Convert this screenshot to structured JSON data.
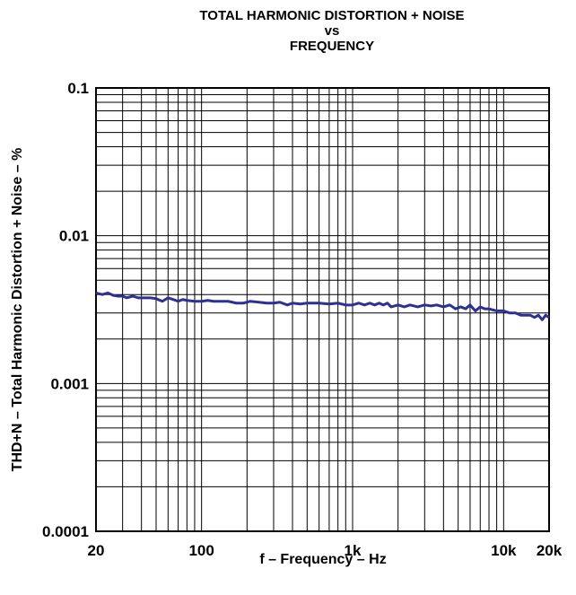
{
  "chart_data": {
    "type": "line",
    "title": [
      "TOTAL HARMONIC DISTORTION + NOISE",
      "vs",
      "FREQUENCY"
    ],
    "xlabel": "f – Frequency – Hz",
    "ylabel": "THD+N – Total Harmonic Distortion + Noise – %",
    "x_scale": "log",
    "y_scale": "log",
    "xlim": [
      20,
      20000
    ],
    "ylim": [
      0.0001,
      0.1
    ],
    "grid": true,
    "x_ticks": [
      {
        "value": 20,
        "label": "20"
      },
      {
        "value": 100,
        "label": "100"
      },
      {
        "value": 1000,
        "label": "1k"
      },
      {
        "value": 10000,
        "label": "10k"
      },
      {
        "value": 20000,
        "label": "20k"
      }
    ],
    "y_ticks": [
      {
        "value": 0.1,
        "label": "0.1"
      },
      {
        "value": 0.01,
        "label": "0.01"
      },
      {
        "value": 0.001,
        "label": "0.001"
      },
      {
        "value": 0.0001,
        "label": "0.0001"
      }
    ],
    "line_color": "#2e3192",
    "series": [
      {
        "x": [
          20,
          22,
          24,
          26,
          28,
          30,
          32,
          35,
          38,
          42,
          46,
          50,
          55,
          60,
          65,
          70,
          75,
          80,
          90,
          100,
          110,
          120,
          135,
          150,
          170,
          190,
          210,
          240,
          270,
          300,
          330,
          370,
          400,
          450,
          500,
          550,
          600,
          700,
          800,
          900,
          1000,
          1100,
          1200,
          1300,
          1400,
          1500,
          1600,
          1700,
          1800,
          2000,
          2200,
          2400,
          2700,
          3000,
          3300,
          3600,
          4000,
          4400,
          4800,
          5200,
          5600,
          6000,
          6500,
          7000,
          7500,
          8000,
          9000,
          10000,
          11000,
          12000,
          13000,
          14000,
          15000,
          16000,
          17000,
          18000,
          19000,
          20000
        ],
        "y": [
          0.0041,
          0.004,
          0.0041,
          0.00395,
          0.0039,
          0.0039,
          0.0038,
          0.0039,
          0.0038,
          0.0038,
          0.0038,
          0.00375,
          0.0036,
          0.0038,
          0.0037,
          0.0036,
          0.0037,
          0.00365,
          0.0036,
          0.0036,
          0.00365,
          0.0036,
          0.0036,
          0.0036,
          0.0035,
          0.0035,
          0.0036,
          0.00355,
          0.0035,
          0.0035,
          0.00355,
          0.0034,
          0.0035,
          0.00345,
          0.0035,
          0.0035,
          0.0035,
          0.00345,
          0.0035,
          0.0034,
          0.0034,
          0.0035,
          0.0034,
          0.0035,
          0.0034,
          0.0035,
          0.0034,
          0.0035,
          0.0033,
          0.0034,
          0.0033,
          0.0034,
          0.0033,
          0.0034,
          0.00335,
          0.0034,
          0.0033,
          0.0034,
          0.0032,
          0.0033,
          0.0032,
          0.0034,
          0.0031,
          0.0033,
          0.0032,
          0.0032,
          0.0031,
          0.0031,
          0.003,
          0.003,
          0.0029,
          0.0029,
          0.0029,
          0.0028,
          0.0029,
          0.0027,
          0.0029,
          0.0028
        ]
      }
    ]
  }
}
